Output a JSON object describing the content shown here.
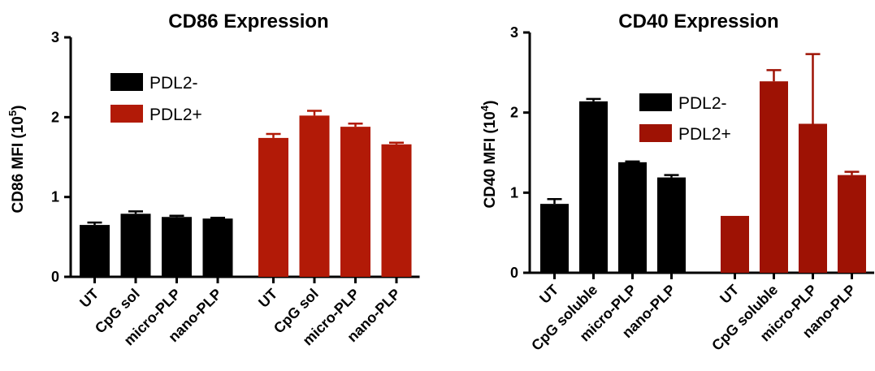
{
  "chart_data": [
    {
      "type": "bar",
      "title": "CD86 Expression",
      "ylabel_main": "CD86 MFI (10",
      "ylabel_sup": "5",
      "ylabel_end": ")",
      "ylim": [
        0,
        3
      ],
      "yticks": [
        "0",
        "1",
        "2",
        "3"
      ],
      "grid": false,
      "legend_position": "upper-left",
      "categories": [
        "UT",
        "CpG sol",
        "micro-PLP",
        "nano-PLP"
      ],
      "series": [
        {
          "name": "PDL2-",
          "color": "#000000",
          "values": [
            0.65,
            0.79,
            0.75,
            0.73
          ],
          "errors": [
            0.03,
            0.03,
            0.015,
            0.01
          ]
        },
        {
          "name": "PDL2+",
          "color": "#b21a07",
          "values": [
            1.74,
            2.02,
            1.88,
            1.66
          ],
          "errors": [
            0.05,
            0.06,
            0.04,
            0.02
          ]
        }
      ]
    },
    {
      "type": "bar",
      "title": "CD40 Expression",
      "ylabel_main": "CD40 MFI (10",
      "ylabel_sup": "4",
      "ylabel_end": ")",
      "ylim": [
        0,
        3
      ],
      "yticks": [
        "0",
        "1",
        "2",
        "3"
      ],
      "grid": false,
      "legend_position": "center",
      "categories": [
        "UT",
        "CpG soluble",
        "micro-PLP",
        "nano-PLP"
      ],
      "series": [
        {
          "name": "PDL2-",
          "color": "#000000",
          "values": [
            0.86,
            2.14,
            1.38,
            1.19
          ],
          "errors": [
            0.06,
            0.03,
            0.01,
            0.03
          ]
        },
        {
          "name": "PDL2+",
          "color": "#9e1204",
          "values": [
            0.71,
            2.39,
            1.86,
            1.22
          ],
          "errors": [
            0.0,
            0.14,
            0.87,
            0.04
          ]
        }
      ]
    }
  ]
}
